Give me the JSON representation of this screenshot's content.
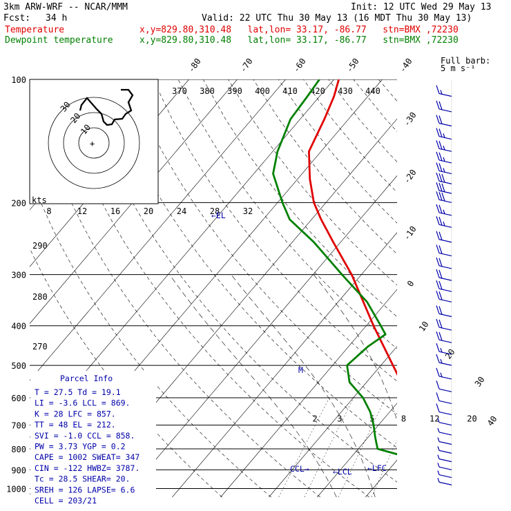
{
  "header": {
    "model": "3km ARW-WRF -- NCAR/MMM",
    "init": "Init: 12 UTC Wed 29 May 13",
    "fcst_label": "Fcst:",
    "fcst_value": "34 h",
    "valid": "Valid: 22 UTC Thu 30 May 13 (16 MDT Thu 30 May 13)",
    "temp_label": "Temperature",
    "dew_label": "Dewpoint temperature",
    "location": "x,y=829.80,310.48   lat,lon= 33.17, -86.77   stn=BMX ,72230",
    "barb_legend": [
      "Full barb:",
      "5 m s⁻¹"
    ]
  },
  "colors": {
    "temperature": "#e00000",
    "dewpoint": "#008000",
    "parcel_info": "#0000aa",
    "adiabat": "#000000"
  },
  "chart_data": {
    "type": "line",
    "skewt": true,
    "pressure_levels": [
      100,
      200,
      300,
      400,
      500,
      600,
      700,
      800,
      900,
      1000
    ],
    "isotherm_labels": [
      -80,
      -70,
      -60,
      -50,
      -40,
      -30,
      -20,
      -10,
      0,
      10,
      20,
      30,
      40
    ],
    "theta_labels": [
      370,
      380,
      390,
      400,
      410,
      420,
      430,
      440
    ],
    "dry_adiabat_labels": [
      290,
      280,
      270
    ],
    "mixing_ratio_labels": [
      "2",
      "3",
      "5",
      "8",
      "12",
      "20"
    ],
    "hodo_speed_labels": [
      "8",
      "12",
      "16",
      "20",
      "24",
      "28",
      "32"
    ],
    "hodo_ring_labels": [
      "10",
      "20",
      "30"
    ],
    "hodo_units": "kts",
    "series": [
      {
        "name": "Temperature",
        "pressure": [
          1000,
          960,
          925,
          900,
          850,
          800,
          700,
          600,
          500,
          400,
          300,
          250,
          220,
          200,
          175,
          150,
          125,
          110,
          100
        ],
        "values": [
          27.5,
          24.0,
          21.5,
          20.0,
          18.5,
          16.0,
          9.0,
          1.5,
          -7.5,
          -18.5,
          -32.0,
          -41.5,
          -48.0,
          -52.5,
          -57.5,
          -62.5,
          -65.0,
          -67.0,
          -69.0
        ]
      },
      {
        "name": "Dewpoint temperature",
        "pressure": [
          1000,
          960,
          925,
          900,
          850,
          800,
          750,
          700,
          650,
          600,
          550,
          500,
          450,
          420,
          400,
          350,
          300,
          250,
          220,
          200,
          170,
          150,
          125,
          110,
          100
        ],
        "values": [
          19.0,
          19.5,
          19.5,
          19.0,
          14.0,
          4.0,
          1.5,
          -1.0,
          -4.0,
          -8.0,
          -13.5,
          -17.0,
          -16.0,
          -14.5,
          -17.0,
          -24.0,
          -34.0,
          -45.5,
          -54.5,
          -59.0,
          -66.0,
          -69.0,
          -72.0,
          -72.5,
          -73.0
        ]
      }
    ],
    "annotations": {
      "el": "EL",
      "lcl": "LCL",
      "lfc": "LFC",
      "ccl": "CCL",
      "m": "M"
    },
    "wind_barbs": [
      {
        "p": 110,
        "spd": 15
      },
      {
        "p": 120,
        "spd": 20
      },
      {
        "p": 130,
        "spd": 20
      },
      {
        "p": 140,
        "spd": 25
      },
      {
        "p": 150,
        "spd": 25
      },
      {
        "p": 160,
        "spd": 25
      },
      {
        "p": 170,
        "spd": 25
      },
      {
        "p": 180,
        "spd": 30
      },
      {
        "p": 190,
        "spd": 30
      },
      {
        "p": 200,
        "spd": 30
      },
      {
        "p": 215,
        "spd": 25
      },
      {
        "p": 230,
        "spd": 25
      },
      {
        "p": 250,
        "spd": 20
      },
      {
        "p": 270,
        "spd": 20
      },
      {
        "p": 290,
        "spd": 20
      },
      {
        "p": 310,
        "spd": 20
      },
      {
        "p": 330,
        "spd": 20
      },
      {
        "p": 350,
        "spd": 20
      },
      {
        "p": 380,
        "spd": 20
      },
      {
        "p": 410,
        "spd": 20
      },
      {
        "p": 440,
        "spd": 20
      },
      {
        "p": 470,
        "spd": 15
      },
      {
        "p": 500,
        "spd": 15
      },
      {
        "p": 540,
        "spd": 15
      },
      {
        "p": 580,
        "spd": 10
      },
      {
        "p": 620,
        "spd": 10
      },
      {
        "p": 660,
        "spd": 10
      },
      {
        "p": 700,
        "spd": 5
      },
      {
        "p": 740,
        "spd": 5
      },
      {
        "p": 780,
        "spd": 5
      },
      {
        "p": 820,
        "spd": 5
      },
      {
        "p": 860,
        "spd": 5
      },
      {
        "p": 900,
        "spd": 5
      },
      {
        "p": 940,
        "spd": 5
      },
      {
        "p": 980,
        "spd": 5
      }
    ]
  },
  "parcel_info": {
    "title": "Parcel Info",
    "rows": [
      "T  =    27.5  Td =   19.1",
      "LI =    -3.6  LCL =   869.",
      "K  =      28  LFC =   857.",
      "TT =      48  EL  =   212.",
      "SVI =   -1.0  CCL =   858.",
      "PW =    3.73  YGP =    0.2",
      "CAPE =  1002  SWEAT=   347",
      "CIN =   -122  HWBZ= 3787.",
      "Tc =    28.5  SHEAR=   20.",
      "SREH =   126  LAPSE=   6.6",
      "CELL =  203/21"
    ]
  }
}
